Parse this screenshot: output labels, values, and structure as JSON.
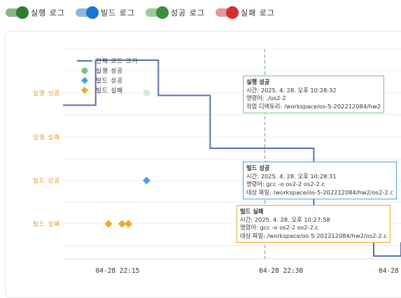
{
  "toggles": [
    {
      "label": "실행 로그",
      "track": "#86b886",
      "knob": "#2e7d32"
    },
    {
      "label": "빌드 로그",
      "track": "#8fb8d8",
      "knob": "#1976d2"
    },
    {
      "label": "성공 로그",
      "track": "#9ccb9c",
      "knob": "#388e3c"
    },
    {
      "label": "실패 로그",
      "track": "#e59a9a",
      "knob": "#d32f2f"
    }
  ],
  "chart_data": {
    "type": "scatter",
    "title": "",
    "y_categories": [
      "실행 성공",
      "실행 실패",
      "빌드 성공",
      "빌드 실패"
    ],
    "x_ticks": [
      "04-28 22:15",
      "04-28 22:30",
      "04-28"
    ],
    "x_range": [
      "2025-04-28 22:10",
      "2025-04-28 22:41"
    ],
    "legend": {
      "position": "top-left",
      "items": [
        {
          "label": "전체 코드 크기",
          "shape": "line",
          "color": "#5a6ea8"
        },
        {
          "label": "실행 성공",
          "shape": "circle",
          "color": "#7cc47c"
        },
        {
          "label": "빌드 성공",
          "shape": "diamond",
          "color": "#4a9ee8"
        },
        {
          "label": "빌드 실패",
          "shape": "diamond",
          "color": "#f5a623"
        }
      ]
    },
    "series": [
      {
        "name": "실행 성공",
        "color": "#7cc47c",
        "points": [
          {
            "x": "22:17:40",
            "y": "실행 성공",
            "faded": true
          },
          {
            "x": "22:28:32",
            "y": "실행 성공"
          }
        ]
      },
      {
        "name": "빌드 성공",
        "color": "#4a9ee8",
        "points": [
          {
            "x": "22:17:40",
            "y": "빌드 성공"
          },
          {
            "x": "22:28:31",
            "y": "빌드 성공"
          }
        ]
      },
      {
        "name": "빌드 실패",
        "color": "#f5a623",
        "points": [
          {
            "x": "22:14:10",
            "y": "빌드 실패"
          },
          {
            "x": "22:15:25",
            "y": "빌드 실패"
          },
          {
            "x": "22:16:00",
            "y": "빌드 실패"
          },
          {
            "x": "22:27:58",
            "y": "빌드 실패"
          }
        ]
      },
      {
        "name": "전체 코드 크기",
        "color": "#5a6ea8",
        "step_x": [
          "22:10:00",
          "22:13:00",
          "22:13:00",
          "22:18:45",
          "22:18:45",
          "22:23:30",
          "22:23:30",
          "22:33:00",
          "22:33:00",
          "22:38:30",
          "22:38:30",
          "22:41:00",
          "22:41:00"
        ],
        "step_level": [
          0.77,
          0.77,
          1.0,
          1.0,
          0.82,
          0.82,
          0.55,
          0.55,
          0.09,
          0.09,
          0.0,
          0.0,
          0.07
        ]
      }
    ],
    "cursor_x": "22:28:31"
  },
  "tooltips": [
    {
      "title": "실행 성공",
      "lines": [
        "시간: 2025. 4. 28. 오후 10:28:32",
        "명령어: ./os2-2",
        "작업 디렉토리: /workspace/os-5-202212084/hw2"
      ],
      "border": "#7cc47c"
    },
    {
      "title": "빌드 성공",
      "lines": [
        "시간: 2025. 4. 28. 오후 10:28:31",
        "명령어: gcc -o os2-2 os2-2.c",
        "대상 파일: /workspace/os-5-202212084/hw2/os2-2.c"
      ],
      "border": "#4a9ee8"
    },
    {
      "title": "빌드 실패",
      "lines": [
        "시간: 2025. 4. 28. 오후 10:27:58",
        "명령어: gcc -o os2-2 os2-2.c",
        "대상 파일: /workspace/os-5-202212084/hw2/os2-2.c"
      ],
      "border": "#f5a623"
    }
  ]
}
